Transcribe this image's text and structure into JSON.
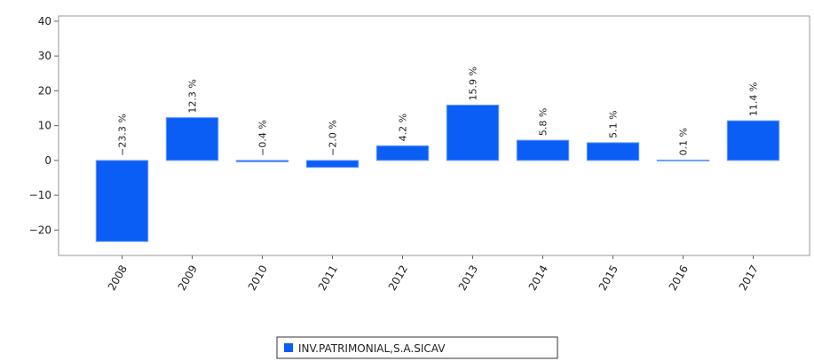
{
  "chart_data": {
    "type": "bar",
    "categories": [
      "2008",
      "2009",
      "2010",
      "2011",
      "2012",
      "2013",
      "2014",
      "2015",
      "2016",
      "2017"
    ],
    "series": [
      {
        "name": "INV.PATRIMONIAL,S.A.SICAV",
        "color": "#0a5ef6",
        "values": [
          -23.3,
          12.3,
          -0.4,
          -2.0,
          4.2,
          15.9,
          5.8,
          5.1,
          0.1,
          11.4
        ],
        "value_labels": [
          "−23.3 %",
          "12.3 %",
          "−0.4 %",
          "−2.0 %",
          "4.2 %",
          "15.9 %",
          "5.8 %",
          "5.1 %",
          "0.1 %",
          "11.4 %"
        ]
      }
    ],
    "ylim": [
      -27.3,
      41.5
    ],
    "yticks": [
      {
        "value": -20,
        "label": "−20"
      },
      {
        "value": -10,
        "label": "−10"
      },
      0,
      10,
      20,
      30,
      40
    ]
  }
}
